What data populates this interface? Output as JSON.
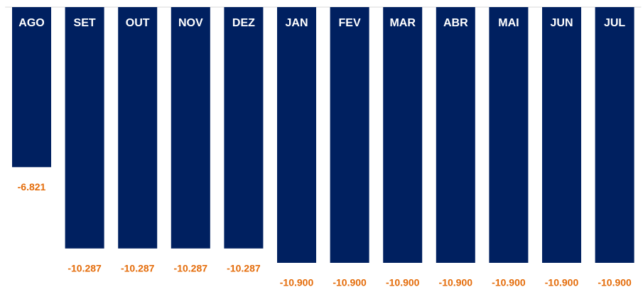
{
  "chart_data": {
    "type": "bar",
    "categories": [
      "AGO",
      "SET",
      "OUT",
      "NOV",
      "DEZ",
      "JAN",
      "FEV",
      "MAR",
      "ABR",
      "MAI",
      "JUN",
      "JUL"
    ],
    "values": [
      -6821,
      -10287,
      -10287,
      -10287,
      -10287,
      -10900,
      -10900,
      -10900,
      -10900,
      -10900,
      -10900,
      -10900
    ],
    "value_labels": [
      "-6.821",
      "-10.287",
      "-10.287",
      "-10.287",
      "-10.287",
      "-10.900",
      "-10.900",
      "-10.900",
      "-10.900",
      "-10.900",
      "-10.900",
      "-10.900"
    ],
    "color": "#002060",
    "label_color": "#e46c0a",
    "ylim": [
      -11000,
      0
    ]
  }
}
